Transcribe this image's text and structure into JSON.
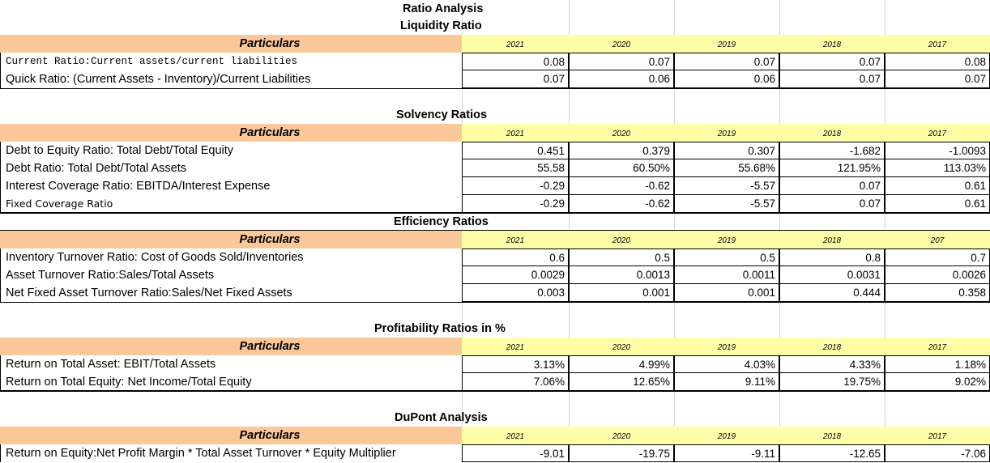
{
  "main_title": "Ratio Analysis",
  "liquidity": {
    "title": "Liquidity Ratio",
    "header": {
      "label": "Particulars",
      "years": [
        "2021",
        "2020",
        "2019",
        "2018",
        "2017"
      ]
    },
    "rows": [
      {
        "label": "Current Ratio:Current assets/current liabilities",
        "values": [
          "0.08",
          "0.07",
          "0.07",
          "0.07",
          "0.08"
        ]
      },
      {
        "label": "Quick Ratio: (Current Assets - Inventory)/Current Liabilities",
        "values": [
          "0.07",
          "0.06",
          "0.06",
          "0.07",
          "0.07"
        ]
      }
    ]
  },
  "solvency": {
    "title": "Solvency Ratios",
    "header": {
      "label": "Particulars",
      "years": [
        "2021",
        "2020",
        "2019",
        "2018",
        "2017"
      ]
    },
    "rows": [
      {
        "label": "Debt to Equity Ratio: Total Debt/Total Equity",
        "values": [
          "0.451",
          "0.379",
          "0.307",
          "-1.682",
          "-1.0093"
        ]
      },
      {
        "label": "Debt Ratio: Total Debt/Total Assets",
        "values": [
          "55.58",
          "60.50%",
          "55.68%",
          "121.95%",
          "113.03%"
        ]
      },
      {
        "label": "Interest Coverage Ratio: EBITDA/Interest Expense",
        "values": [
          "-0.29",
          "-0.62",
          "-5.57",
          "0.07",
          "0.61"
        ]
      },
      {
        "label": "Fixed Coverage Ratio",
        "values": [
          "-0.29",
          "-0.62",
          "-5.57",
          "0.07",
          "0.61"
        ]
      }
    ]
  },
  "efficiency": {
    "title": "Efficiency Ratios",
    "header": {
      "label": "Particulars",
      "years": [
        "2021",
        "2020",
        "2019",
        "2018",
        "207"
      ]
    },
    "rows": [
      {
        "label": "Inventory Turnover Ratio: Cost of Goods Sold/Inventories",
        "values": [
          "0.6",
          "0.5",
          "0.5",
          "0.8",
          "0.7"
        ]
      },
      {
        "label": "Asset Turnover Ratio:Sales/Total Assets",
        "values": [
          "0.0029",
          "0.0013",
          "0.0011",
          "0.0031",
          "0.0026"
        ]
      },
      {
        "label": "Net Fixed Asset Turnover Ratio:Sales/Net Fixed Assets",
        "values": [
          "0.003",
          "0.001",
          "0.001",
          "0.444",
          "0.358"
        ]
      }
    ]
  },
  "profitability": {
    "title": "Profitability Ratios in %",
    "header": {
      "label": "Particulars",
      "years": [
        "2021",
        "2020",
        "2019",
        "2018",
        "2017"
      ]
    },
    "rows": [
      {
        "label": "Return on Total Asset: EBIT/Total Assets",
        "values": [
          "3.13%",
          "4.99%",
          "4.03%",
          "4.33%",
          "1.18%"
        ]
      },
      {
        "label": "Return on Total Equity: Net Income/Total Equity",
        "values": [
          "7.06%",
          "12.65%",
          "9.11%",
          "19.75%",
          "9.02%"
        ]
      }
    ]
  },
  "dupont": {
    "title": "DuPont Analysis",
    "header": {
      "label": "Particulars",
      "years": [
        "2021",
        "2020",
        "2019",
        "2018",
        "2017"
      ]
    },
    "rows": [
      {
        "label": "Return on Equity:Net Profit Margin * Total Asset Turnover * Equity Multiplier",
        "values": [
          "-9.01",
          "-19.75",
          "-9.11",
          "-12.65",
          "-7.06"
        ]
      }
    ]
  }
}
